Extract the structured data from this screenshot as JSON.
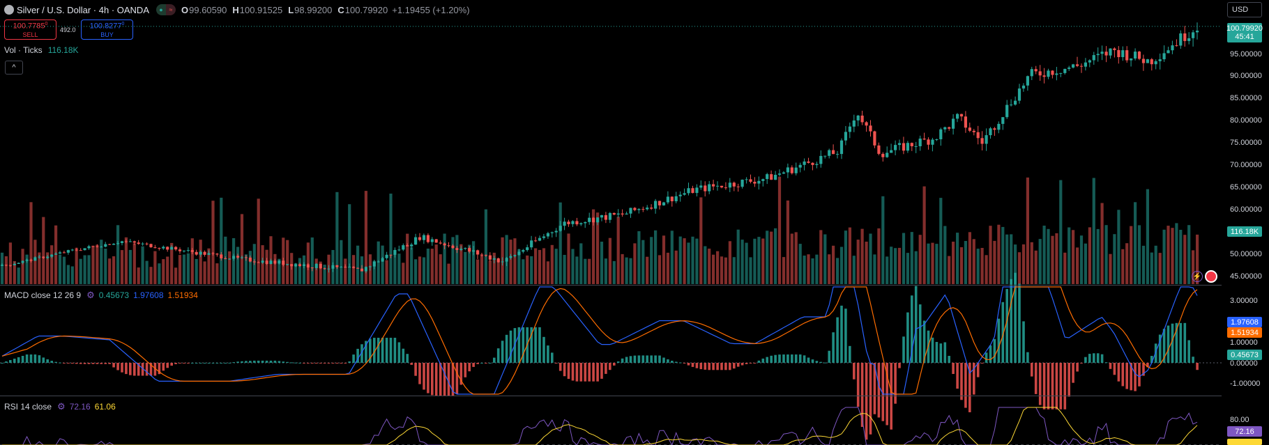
{
  "header": {
    "symbol_title": "Silver / U.S. Dollar · 4h · OANDA",
    "open_label": "O",
    "open": "99.60590",
    "high_label": "H",
    "high": "100.91525",
    "low_label": "L",
    "low": "98.99200",
    "close_label": "C",
    "close": "100.79920",
    "change": "+1.19455 (+1.20%)",
    "market_status_icon": "circle-green-icon",
    "compare_icon": "wave-icon"
  },
  "trade": {
    "sell_price": "100.7785",
    "sell_sup": "0",
    "sell_label": "SELL",
    "spread": "492.0",
    "buy_price": "100.8277",
    "buy_sup": "0",
    "buy_label": "BUY"
  },
  "volume_legend": {
    "label": "Vol · Ticks",
    "value": "116.18K"
  },
  "currency": "USD",
  "price_axis": {
    "ticks": [
      "95.00000",
      "90.00000",
      "85.00000",
      "80.00000",
      "75.00000",
      "70.00000",
      "65.00000",
      "60.00000",
      "50.00000",
      "45.00000"
    ],
    "last_price": "100.79920",
    "countdown": "45:41",
    "volume_tag": "116.18K"
  },
  "macd": {
    "title": "MACD close 12 26 9",
    "hist_value": "0.45673",
    "macd_value": "1.97608",
    "signal_value": "1.51934",
    "ticks": [
      "3.00000",
      "1.00000",
      "0.00000",
      "-1.00000"
    ],
    "tag_macd": "1.97608",
    "tag_signal": "1.51934",
    "tag_hist": "0.45673"
  },
  "rsi": {
    "title": "RSI 14 close",
    "value": "72.16",
    "ma_value": "61.06",
    "ticks": [
      "80.00"
    ],
    "tag": "72.16"
  },
  "colors": {
    "up": "#26a69a",
    "down": "#ef5350",
    "macd_line": "#2962ff",
    "signal_line": "#ff6d00",
    "rsi_line": "#7e57c2",
    "rsi_ma": "#fdd835"
  },
  "chart_data": {
    "type": "candlestick",
    "series": [
      {
        "name": "Vol · Ticks"
      },
      {
        "name": "MACD close 12 26 9"
      },
      {
        "name": "RSI 14 close"
      }
    ],
    "price_range": [
      44,
      102
    ],
    "anchors": [
      [
        0,
        47.5
      ],
      [
        0.06,
        51
      ],
      [
        0.1,
        53
      ],
      [
        0.2,
        49
      ],
      [
        0.3,
        46.5
      ],
      [
        0.35,
        54
      ],
      [
        0.42,
        48.5
      ],
      [
        0.47,
        57
      ],
      [
        0.52,
        59
      ],
      [
        0.58,
        64.5
      ],
      [
        0.64,
        67
      ],
      [
        0.7,
        73
      ],
      [
        0.715,
        82
      ],
      [
        0.735,
        72.5
      ],
      [
        0.78,
        76
      ],
      [
        0.8,
        80.5
      ],
      [
        0.82,
        75
      ],
      [
        0.86,
        90
      ],
      [
        0.9,
        92
      ],
      [
        0.93,
        95.5
      ],
      [
        0.96,
        93
      ],
      [
        1.0,
        100.8
      ]
    ],
    "macd_range": [
      -1.4,
      3.6
    ],
    "rsi_range": [
      70,
      90
    ]
  }
}
